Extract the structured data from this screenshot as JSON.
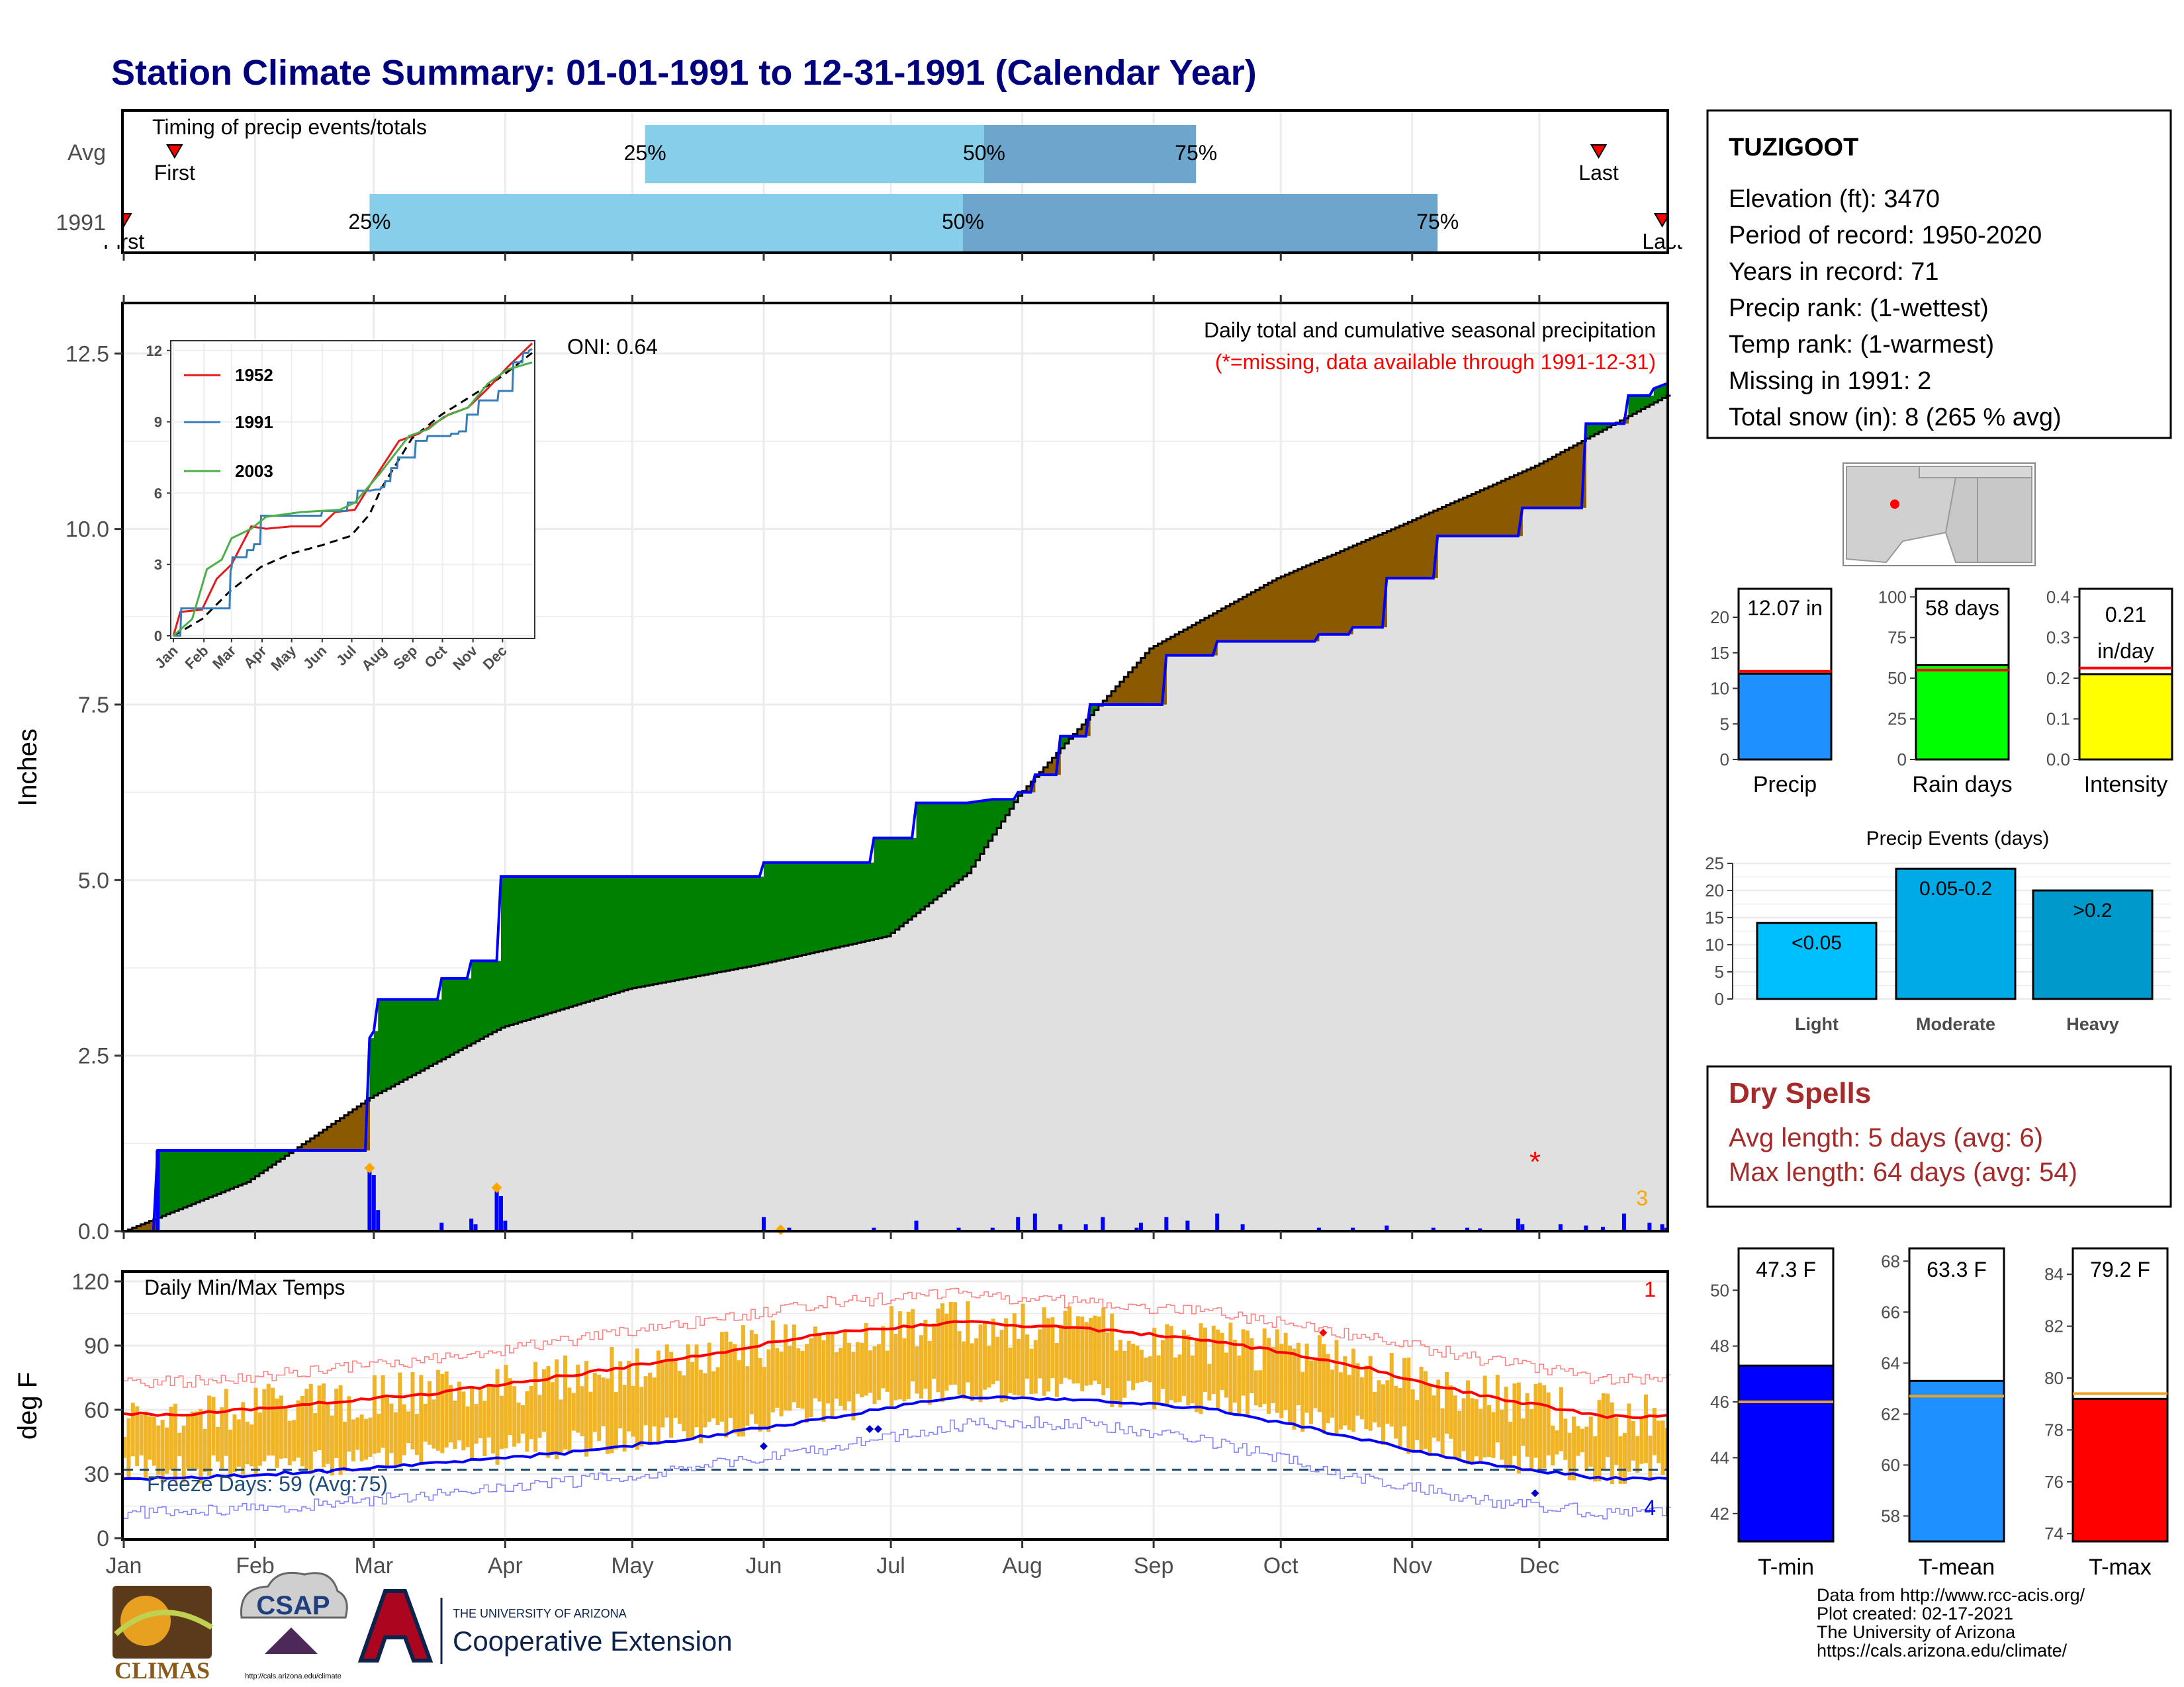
{
  "title": "Station Climate Summary: 01-01-1991 to 12-31-1991 (Calendar Year)",
  "timing": {
    "panel_title": "Timing of precip events/totals",
    "rows": [
      {
        "label": "Avg",
        "first_label": "First",
        "last_label": "Last",
        "first_day": 13,
        "last_day": 349,
        "p25_day": 124,
        "p50_day": 204,
        "p75_day": 254,
        "p25": "25%",
        "p50": "50%",
        "p75": "75%"
      },
      {
        "label": "1991",
        "first_label": "First",
        "last_label": "Last",
        "first_day": 1,
        "last_day": 364,
        "p25_day": 59,
        "p50_day": 199,
        "p75_day": 311,
        "p25": "25%",
        "p50": "50%",
        "p75": "75%"
      }
    ]
  },
  "station": {
    "name": "TUZIGOOT",
    "lines": [
      "Elevation (ft): 3470",
      "Period of record: 1950-2020",
      "Years in record: 71",
      "Precip rank:  (1-wettest)",
      "Temp rank:  (1-warmest)",
      "Missing in 1991: 2",
      "Total snow (in): 8 (265 % avg)"
    ]
  },
  "precip_panel": {
    "ylabel": "Inches",
    "oni": "ONI: 0.64",
    "subtitle": "Daily total and cumulative seasonal precipitation",
    "missing_note": "(*=missing, data available through 1991-12-31)",
    "corner_count": "3",
    "yticks": [
      "0.0",
      "2.5",
      "5.0",
      "7.5",
      "10.0",
      "12.5"
    ],
    "colors": {
      "above": "#008000",
      "below": "#8b5a00",
      "normal_fill": "#e0e0e0",
      "series": "#0000ff"
    }
  },
  "inset": {
    "yticks": [
      "0",
      "3",
      "6",
      "9",
      "12"
    ],
    "months": [
      "Jan",
      "Feb",
      "Mar",
      "Apr",
      "May",
      "Jun",
      "Jul",
      "Aug",
      "Sep",
      "Oct",
      "Nov",
      "Dec"
    ],
    "legend": [
      {
        "name": "1952",
        "color": "#e41a1c"
      },
      {
        "name": "1991",
        "color": "#377eb8"
      },
      {
        "name": "2003",
        "color": "#4daf4a"
      }
    ]
  },
  "temp_panel": {
    "ylabel": "deg F",
    "title": "Daily Min/Max Temps",
    "freeze": "Freeze Days: 59 (Avg:75)",
    "corner_top": "1",
    "corner_bottom": "4",
    "yticks": [
      "0",
      "30",
      "60",
      "90",
      "120"
    ]
  },
  "months": [
    "Jan",
    "Feb",
    "Mar",
    "Apr",
    "May",
    "Jun",
    "Jul",
    "Aug",
    "Sep",
    "Oct",
    "Nov",
    "Dec"
  ],
  "bars_top": {
    "labels": [
      "Precip",
      "Rain days",
      "Intensity"
    ],
    "values_text": [
      "12.07 in",
      "58 days",
      "0.21\nin/day"
    ],
    "values": [
      12.07,
      58,
      0.21
    ],
    "averages": [
      12.4,
      55,
      0.225
    ],
    "ylims": [
      [
        0,
        24
      ],
      [
        0,
        105
      ],
      [
        0,
        0.42
      ]
    ],
    "yticks": [
      [
        "0",
        "5",
        "10",
        "15",
        "20"
      ],
      [
        "0",
        "25",
        "50",
        "75",
        "100"
      ],
      [
        "0.0",
        "0.1",
        "0.2",
        "0.3",
        "0.4"
      ]
    ],
    "colors": [
      "#1e90ff",
      "#00ff00",
      "#ffff00"
    ]
  },
  "events": {
    "title": "Precip Events (days)",
    "categories": [
      "Light",
      "Moderate",
      "Heavy"
    ],
    "values": [
      14,
      24,
      20
    ],
    "labels": [
      "<0.05",
      "0.05-0.2",
      ">0.2"
    ],
    "yticks": [
      "0",
      "5",
      "10",
      "15",
      "20",
      "25"
    ],
    "colors": [
      "#00bfff",
      "#00aae6",
      "#0099cc"
    ]
  },
  "dry_spells": {
    "title": "Dry Spells",
    "avg": "Avg length: 5 days (avg: 6)",
    "max": "Max length: 64 days (avg: 54)"
  },
  "temp_bars": {
    "labels": [
      "T-min",
      "T-mean",
      "T-max"
    ],
    "values_text": [
      "47.3 F",
      "63.3 F",
      "79.2 F"
    ],
    "values": [
      47.3,
      63.3,
      79.2
    ],
    "averages": [
      46.0,
      62.7,
      79.4
    ],
    "ylims": [
      [
        41,
        51.5
      ],
      [
        57,
        68.5
      ],
      [
        73.7,
        85
      ]
    ],
    "yticks": [
      [
        "42",
        "44",
        "46",
        "48",
        "50"
      ],
      [
        "58",
        "60",
        "62",
        "64",
        "66",
        "68"
      ],
      [
        "74",
        "76",
        "78",
        "80",
        "82",
        "84"
      ]
    ],
    "colors": [
      "#0000ff",
      "#1e90ff",
      "#ff0000"
    ]
  },
  "footer": {
    "lines": [
      "Data from http://www.rcc-acis.org/",
      "Plot created: 02-17-2021",
      "The University of Arizona",
      "https://cals.arizona.edu/climate/"
    ],
    "climas": "CLIMAS",
    "csap": "CSAP",
    "csap_url": "http://cals.arizona.edu/climate",
    "ua_small": "THE UNIVERSITY OF ARIZONA",
    "ua_big": "Cooperative Extension"
  },
  "chart_data": [
    {
      "type": "area",
      "title": "Daily total and cumulative seasonal precipitation",
      "ylabel": "Inches",
      "ylim": [
        0,
        13.2
      ],
      "x_units": "day of year",
      "series": [
        {
          "name": "1991",
          "x": [
            1,
            8,
            9,
            58,
            59,
            60,
            61,
            65,
            66,
            70,
            71,
            75,
            76,
            82,
            83,
            89,
            90,
            151,
            152,
            157,
            158,
            177,
            178,
            187,
            188,
            200,
            206,
            211,
            212,
            215,
            216,
            221,
            222,
            228,
            229,
            246,
            247,
            258,
            259,
            264,
            265,
            282,
            283,
            290,
            291,
            298,
            299,
            310,
            311,
            330,
            331,
            345,
            346,
            355,
            356,
            361,
            362,
            365
          ],
          "values": [
            0,
            0,
            1.15,
            1.15,
            2.75,
            2.85,
            3.3,
            3.3,
            3.3,
            3.3,
            3.3,
            3.3,
            3.6,
            3.6,
            3.85,
            3.85,
            5.05,
            5.05,
            5.25,
            5.25,
            5.25,
            5.25,
            5.6,
            5.6,
            6.1,
            6.1,
            6.15,
            6.15,
            6.25,
            6.25,
            6.5,
            6.5,
            7.05,
            7.05,
            7.5,
            7.5,
            8.2,
            8.2,
            8.4,
            8.4,
            8.4,
            8.4,
            8.5,
            8.5,
            8.6,
            8.6,
            9.3,
            9.3,
            9.9,
            9.9,
            10.3,
            10.3,
            11.5,
            11.5,
            11.9,
            11.9,
            12.0,
            12.07
          ]
        },
        {
          "name": "Average",
          "x": [
            1,
            30,
            59,
            90,
            120,
            151,
            181,
            200,
            212,
            243,
            273,
            304,
            334,
            365
          ],
          "values": [
            0,
            0.7,
            1.9,
            2.9,
            3.45,
            3.8,
            4.2,
            5.1,
            6.2,
            8.3,
            9.3,
            10.1,
            10.9,
            11.9
          ]
        }
      ]
    },
    {
      "type": "line",
      "title": "Daily Min/Max Temps",
      "ylabel": "deg F",
      "ylim": [
        0,
        120
      ],
      "categories": [
        "Jan",
        "Feb",
        "Mar",
        "Apr",
        "May",
        "Jun",
        "Jul",
        "Aug",
        "Sep",
        "Oct",
        "Nov",
        "Dec"
      ],
      "series": [
        {
          "name": "Normal max",
          "values": [
            58,
            63,
            68,
            76,
            85,
            96,
            101,
            98,
            92,
            82,
            67,
            57
          ]
        },
        {
          "name": "Normal min",
          "values": [
            28,
            31,
            35,
            40,
            47,
            56,
            66,
            65,
            60,
            48,
            35,
            28
          ]
        },
        {
          "name": "Record max",
          "values": [
            73,
            78,
            84,
            92,
            101,
            110,
            114,
            110,
            105,
            96,
            84,
            74
          ]
        },
        {
          "name": "Record min",
          "values": [
            12,
            16,
            20,
            26,
            33,
            42,
            53,
            54,
            44,
            30,
            18,
            12
          ]
        }
      ],
      "freeze_line": 32
    },
    {
      "type": "bar",
      "categories": [
        "Precip",
        "Rain days",
        "Intensity"
      ],
      "values": [
        12.07,
        58,
        0.21
      ]
    },
    {
      "type": "bar",
      "title": "Precip Events (days)",
      "categories": [
        "Light",
        "Moderate",
        "Heavy"
      ],
      "values": [
        14,
        24,
        20
      ]
    },
    {
      "type": "bar",
      "categories": [
        "T-min",
        "T-mean",
        "T-max"
      ],
      "values": [
        47.3,
        63.3,
        79.2
      ]
    }
  ]
}
